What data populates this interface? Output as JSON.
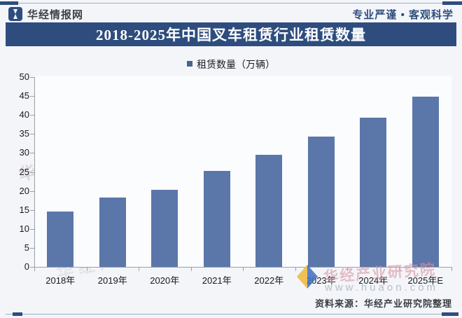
{
  "header": {
    "brand": "华经情报网",
    "slogan": "专业严谨 • 客观科学",
    "logo_icon": "huajing-logo",
    "accent_color": "#2e4d7e"
  },
  "banner": {
    "title": "2018-2025年中国叉车租赁行业租赁数量",
    "bg_color": "#2e4d7e",
    "text_color": "#ffffff"
  },
  "legend": {
    "marker_color": "#4a6390",
    "label": "租赁数量（万辆）"
  },
  "chart_data": {
    "type": "bar",
    "title": "2018-2025年中国叉车租赁行业租赁数量",
    "categories": [
      "2018年",
      "2019年",
      "2020年",
      "2021年",
      "2022年",
      "2023年",
      "2024年",
      "2025年E"
    ],
    "series": [
      {
        "name": "租赁数量（万辆）",
        "values": [
          14.5,
          18.3,
          20.3,
          25.3,
          29.6,
          34.4,
          39.3,
          44.8
        ]
      }
    ],
    "xlabel": "",
    "ylabel": "",
    "ylim": [
      0,
      50
    ],
    "ytick_step": 5,
    "bar_color": "#5b76a9",
    "axis_color": "#9aa0a6",
    "grid": false,
    "legend_position": "top-center"
  },
  "footer": {
    "source": "资料来源：华经产业研究院整理"
  },
  "watermarks": {
    "org_text": "华经产业研究院",
    "domain_text": "www.huaon.com"
  }
}
